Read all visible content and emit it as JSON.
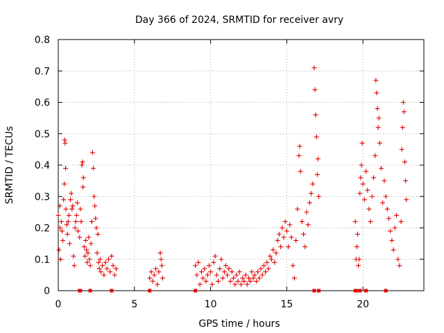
{
  "chart_data": {
    "type": "scatter",
    "title": "Day 366 of 2024, SRMTID for receiver avry",
    "xlabel": "GPS time / hours",
    "ylabel": "SRMTID / TECUs",
    "xlim": [
      0,
      24
    ],
    "ylim": [
      0,
      0.8
    ],
    "xticks": [
      0,
      5,
      10,
      15,
      20
    ],
    "yticks": [
      0,
      0.1,
      0.2,
      0.3,
      0.4,
      0.5,
      0.6,
      0.7,
      0.8
    ],
    "grid": true,
    "marker": "+",
    "color": "#e00000",
    "series": [
      {
        "name": "SRMTID",
        "points": [
          [
            0.0,
            0.24
          ],
          [
            0.05,
            0.13
          ],
          [
            0.1,
            0.27
          ],
          [
            0.12,
            0.2
          ],
          [
            0.15,
            0.1
          ],
          [
            0.2,
            0.22
          ],
          [
            0.25,
            0.19
          ],
          [
            0.3,
            0.16
          ],
          [
            0.35,
            0.29
          ],
          [
            0.4,
            0.34
          ],
          [
            0.42,
            0.48
          ],
          [
            0.45,
            0.47
          ],
          [
            0.48,
            0.39
          ],
          [
            0.5,
            0.26
          ],
          [
            0.55,
            0.21
          ],
          [
            0.6,
            0.18
          ],
          [
            0.65,
            0.22
          ],
          [
            0.7,
            0.24
          ],
          [
            0.75,
            0.15
          ],
          [
            0.8,
            0.29
          ],
          [
            0.85,
            0.31
          ],
          [
            0.9,
            0.26
          ],
          [
            0.95,
            0.27
          ],
          [
            1.0,
            0.11
          ],
          [
            1.05,
            0.08
          ],
          [
            1.1,
            0.2
          ],
          [
            1.15,
            0.22
          ],
          [
            1.2,
            0.24
          ],
          [
            1.25,
            0.28
          ],
          [
            1.3,
            0.19
          ],
          [
            1.4,
            0.17
          ],
          [
            1.45,
            0.26
          ],
          [
            1.5,
            0.22
          ],
          [
            1.55,
            0.4
          ],
          [
            1.6,
            0.41
          ],
          [
            1.62,
            0.33
          ],
          [
            1.65,
            0.36
          ],
          [
            1.7,
            0.14
          ],
          [
            1.75,
            0.11
          ],
          [
            1.8,
            0.16
          ],
          [
            1.85,
            0.13
          ],
          [
            1.9,
            0.09
          ],
          [
            1.95,
            0.12
          ],
          [
            2.0,
            0.17
          ],
          [
            2.05,
            0.1
          ],
          [
            2.1,
            0.08
          ],
          [
            2.15,
            0.15
          ],
          [
            2.2,
            0.22
          ],
          [
            2.25,
            0.44
          ],
          [
            2.3,
            0.39
          ],
          [
            2.35,
            0.3
          ],
          [
            2.4,
            0.27
          ],
          [
            2.45,
            0.23
          ],
          [
            2.5,
            0.2
          ],
          [
            2.55,
            0.12
          ],
          [
            2.6,
            0.18
          ],
          [
            2.65,
            0.09
          ],
          [
            2.7,
            0.07
          ],
          [
            2.75,
            0.1
          ],
          [
            2.8,
            0.06
          ],
          [
            2.9,
            0.08
          ],
          [
            3.0,
            0.05
          ],
          [
            3.1,
            0.09
          ],
          [
            3.2,
            0.07
          ],
          [
            3.3,
            0.1
          ],
          [
            3.4,
            0.06
          ],
          [
            3.5,
            0.11
          ],
          [
            3.6,
            0.08
          ],
          [
            3.7,
            0.05
          ],
          [
            3.8,
            0.07
          ],
          [
            6.0,
            0.04
          ],
          [
            6.1,
            0.06
          ],
          [
            6.2,
            0.03
          ],
          [
            6.3,
            0.05
          ],
          [
            6.4,
            0.07
          ],
          [
            6.5,
            0.02
          ],
          [
            6.6,
            0.06
          ],
          [
            6.7,
            0.12
          ],
          [
            6.75,
            0.1
          ],
          [
            6.8,
            0.08
          ],
          [
            6.85,
            0.04
          ],
          [
            9.0,
            0.08
          ],
          [
            9.1,
            0.05
          ],
          [
            9.2,
            0.09
          ],
          [
            9.3,
            0.02
          ],
          [
            9.4,
            0.06
          ],
          [
            9.5,
            0.04
          ],
          [
            9.6,
            0.07
          ],
          [
            9.7,
            0.03
          ],
          [
            9.8,
            0.05
          ],
          [
            9.9,
            0.08
          ],
          [
            10.0,
            0.06
          ],
          [
            10.1,
            0.02
          ],
          [
            10.2,
            0.09
          ],
          [
            10.3,
            0.11
          ],
          [
            10.4,
            0.05
          ],
          [
            10.5,
            0.03
          ],
          [
            10.6,
            0.07
          ],
          [
            10.7,
            0.1
          ],
          [
            10.8,
            0.04
          ],
          [
            10.9,
            0.06
          ],
          [
            11.0,
            0.08
          ],
          [
            11.1,
            0.05
          ],
          [
            11.2,
            0.07
          ],
          [
            11.3,
            0.03
          ],
          [
            11.4,
            0.06
          ],
          [
            11.5,
            0.04
          ],
          [
            11.6,
            0.02
          ],
          [
            11.7,
            0.05
          ],
          [
            11.8,
            0.03
          ],
          [
            11.9,
            0.06
          ],
          [
            12.0,
            0.02
          ],
          [
            12.1,
            0.04
          ],
          [
            12.2,
            0.03
          ],
          [
            12.3,
            0.05
          ],
          [
            12.4,
            0.02
          ],
          [
            12.5,
            0.04
          ],
          [
            12.6,
            0.03
          ],
          [
            12.7,
            0.06
          ],
          [
            12.8,
            0.04
          ],
          [
            12.9,
            0.05
          ],
          [
            13.0,
            0.03
          ],
          [
            13.1,
            0.06
          ],
          [
            13.2,
            0.04
          ],
          [
            13.3,
            0.07
          ],
          [
            13.4,
            0.05
          ],
          [
            13.5,
            0.08
          ],
          [
            13.6,
            0.06
          ],
          [
            13.7,
            0.09
          ],
          [
            13.8,
            0.07
          ],
          [
            13.9,
            0.11
          ],
          [
            14.0,
            0.1
          ],
          [
            14.1,
            0.13
          ],
          [
            14.2,
            0.09
          ],
          [
            14.3,
            0.12
          ],
          [
            14.4,
            0.16
          ],
          [
            14.5,
            0.18
          ],
          [
            14.6,
            0.14
          ],
          [
            14.7,
            0.2
          ],
          [
            14.8,
            0.17
          ],
          [
            14.9,
            0.22
          ],
          [
            15.0,
            0.19
          ],
          [
            15.1,
            0.14
          ],
          [
            15.2,
            0.21
          ],
          [
            15.3,
            0.17
          ],
          [
            15.4,
            0.08
          ],
          [
            15.5,
            0.04
          ],
          [
            15.6,
            0.16
          ],
          [
            15.7,
            0.26
          ],
          [
            15.8,
            0.43
          ],
          [
            15.85,
            0.46
          ],
          [
            15.9,
            0.38
          ],
          [
            16.0,
            0.22
          ],
          [
            16.1,
            0.18
          ],
          [
            16.2,
            0.14
          ],
          [
            16.3,
            0.25
          ],
          [
            16.4,
            0.21
          ],
          [
            16.5,
            0.28
          ],
          [
            16.6,
            0.31
          ],
          [
            16.7,
            0.34
          ],
          [
            16.8,
            0.71
          ],
          [
            16.85,
            0.64
          ],
          [
            16.9,
            0.56
          ],
          [
            16.95,
            0.49
          ],
          [
            17.0,
            0.37
          ],
          [
            17.05,
            0.42
          ],
          [
            17.1,
            0.3
          ],
          [
            19.5,
            0.22
          ],
          [
            19.55,
            0.1
          ],
          [
            19.6,
            0.14
          ],
          [
            19.65,
            0.18
          ],
          [
            19.7,
            0.08
          ],
          [
            19.75,
            0.1
          ],
          [
            19.8,
            0.31
          ],
          [
            19.85,
            0.36
          ],
          [
            19.9,
            0.4
          ],
          [
            19.95,
            0.47
          ],
          [
            20.0,
            0.34
          ],
          [
            20.1,
            0.29
          ],
          [
            20.2,
            0.38
          ],
          [
            20.3,
            0.32
          ],
          [
            20.4,
            0.26
          ],
          [
            20.5,
            0.22
          ],
          [
            20.6,
            0.3
          ],
          [
            20.7,
            0.36
          ],
          [
            20.8,
            0.43
          ],
          [
            20.85,
            0.67
          ],
          [
            20.9,
            0.63
          ],
          [
            20.95,
            0.58
          ],
          [
            21.0,
            0.52
          ],
          [
            21.05,
            0.55
          ],
          [
            21.1,
            0.47
          ],
          [
            21.2,
            0.39
          ],
          [
            21.3,
            0.28
          ],
          [
            21.4,
            0.35
          ],
          [
            21.5,
            0.3
          ],
          [
            21.6,
            0.26
          ],
          [
            21.7,
            0.23
          ],
          [
            21.8,
            0.19
          ],
          [
            21.9,
            0.16
          ],
          [
            22.0,
            0.13
          ],
          [
            22.1,
            0.2
          ],
          [
            22.2,
            0.24
          ],
          [
            22.3,
            0.1
          ],
          [
            22.4,
            0.08
          ],
          [
            22.5,
            0.22
          ],
          [
            22.55,
            0.45
          ],
          [
            22.6,
            0.52
          ],
          [
            22.65,
            0.6
          ],
          [
            22.7,
            0.57
          ],
          [
            22.75,
            0.41
          ],
          [
            22.8,
            0.35
          ],
          [
            22.85,
            0.29
          ]
        ]
      }
    ],
    "zero_markers": [
      1.4,
      1.45,
      2.1,
      3.5,
      6.0,
      9.0,
      16.8,
      17.1,
      19.5,
      19.55,
      19.8,
      20.2,
      21.5
    ]
  }
}
